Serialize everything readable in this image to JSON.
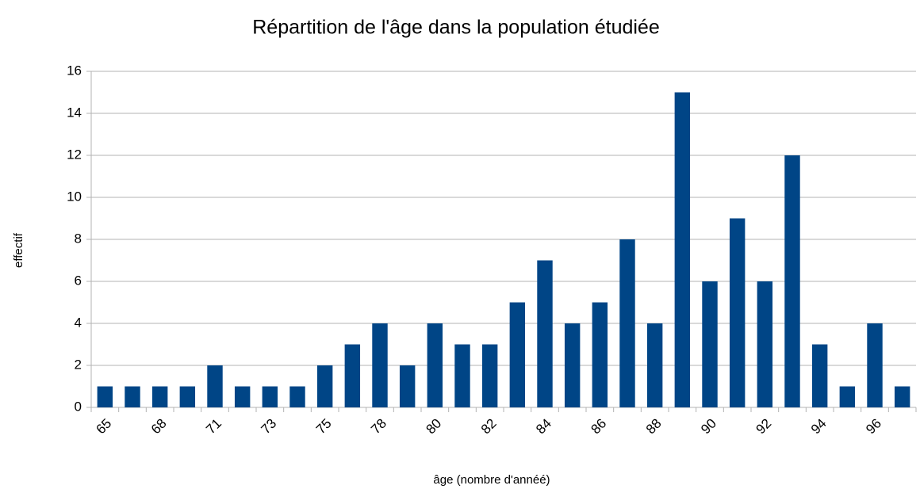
{
  "chart_data": {
    "type": "bar",
    "title": "Répartition de l'âge dans la population étudiée",
    "x_label": "âge (nombre d'annéé)",
    "y_label": "effectif",
    "categories": [
      "65",
      null,
      "68",
      null,
      "71",
      null,
      "73",
      null,
      "75",
      null,
      "78",
      null,
      "80",
      null,
      "82",
      null,
      "84",
      null,
      "86",
      null,
      "88",
      null,
      "90",
      null,
      "92",
      null,
      "94",
      null,
      "96",
      null
    ],
    "values": [
      1,
      1,
      1,
      1,
      2,
      1,
      1,
      1,
      2,
      3,
      4,
      2,
      4,
      3,
      3,
      5,
      7,
      4,
      5,
      8,
      4,
      15,
      6,
      9,
      6,
      12,
      3,
      1,
      4,
      1
    ],
    "color": "#004586",
    "ylim": [
      0,
      16
    ],
    "yticks": [
      0,
      2,
      4,
      6,
      8,
      10,
      12,
      14,
      16
    ],
    "grid": true
  }
}
